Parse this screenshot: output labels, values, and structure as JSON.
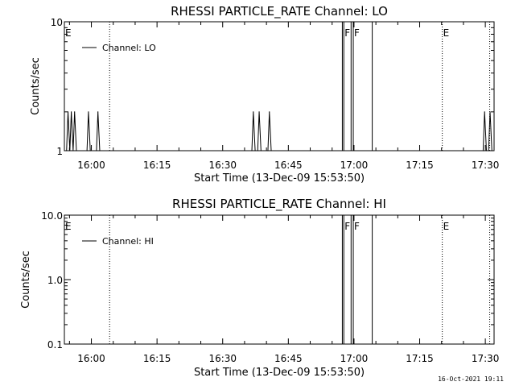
{
  "footer": {
    "timestamp": "16-Oct-2021 19:11"
  },
  "chart_data": [
    {
      "type": "line",
      "title": "RHESSI PARTICLE_RATE Channel: LO",
      "xlabel": "Start Time (13-Dec-09 15:53:50)",
      "ylabel": "Counts/sec",
      "yscale": "log",
      "xlim": [
        "15:53:50",
        "17:32:00"
      ],
      "ylim": [
        1,
        10
      ],
      "x_ticks": [
        "16:00",
        "16:15",
        "16:30",
        "16:45",
        "17:00",
        "17:15",
        "17:30"
      ],
      "y_ticks": [
        "1",
        "10"
      ],
      "legend": {
        "label": "Channel: LO",
        "placement": "top-left"
      },
      "series": [
        {
          "name": "Channel: LO",
          "points": [
            {
              "t": "15:53:50",
              "y": 1
            },
            {
              "t": "15:54:20",
              "y": 1
            },
            {
              "t": "15:54:40",
              "y": 2
            },
            {
              "t": "15:55:05",
              "y": 1
            },
            {
              "t": "15:55:25",
              "y": 2
            },
            {
              "t": "15:55:50",
              "y": 1
            },
            {
              "t": "15:56:10",
              "y": 2
            },
            {
              "t": "15:56:35",
              "y": 1
            },
            {
              "t": "15:59:00",
              "y": 1
            },
            {
              "t": "15:59:20",
              "y": 2
            },
            {
              "t": "15:59:45",
              "y": 1
            },
            {
              "t": "16:01:10",
              "y": 1
            },
            {
              "t": "16:01:30",
              "y": 2
            },
            {
              "t": "16:01:55",
              "y": 1
            },
            {
              "t": "16:36:40",
              "y": 1
            },
            {
              "t": "16:37:00",
              "y": 2
            },
            {
              "t": "16:37:25",
              "y": 1
            },
            {
              "t": "16:38:00",
              "y": 1
            },
            {
              "t": "16:38:20",
              "y": 2
            },
            {
              "t": "16:38:45",
              "y": 1
            },
            {
              "t": "16:40:20",
              "y": 1
            },
            {
              "t": "16:40:40",
              "y": 2
            },
            {
              "t": "16:41:05",
              "y": 1
            },
            {
              "t": "17:29:30",
              "y": 1
            },
            {
              "t": "17:29:50",
              "y": 2
            },
            {
              "t": "17:30:15",
              "y": 1
            },
            {
              "t": "17:30:45",
              "y": 1
            },
            {
              "t": "17:31:05",
              "y": 2
            },
            {
              "t": "17:31:30",
              "y": 1
            }
          ]
        }
      ],
      "markers": [
        {
          "t": "15:53:50",
          "label": "E",
          "style": "none"
        },
        {
          "t": "16:04:10",
          "label": "",
          "style": "dotted"
        },
        {
          "t": "16:57:20",
          "label": "",
          "style": "solid"
        },
        {
          "t": "16:57:40",
          "label": "F",
          "style": "solid"
        },
        {
          "t": "16:59:20",
          "label": "",
          "style": "solid"
        },
        {
          "t": "16:59:50",
          "label": "F",
          "style": "solid"
        },
        {
          "t": "17:04:10",
          "label": "",
          "style": "solid"
        },
        {
          "t": "17:20:10",
          "label": "E",
          "style": "dotted"
        },
        {
          "t": "17:31:00",
          "label": "",
          "style": "dotted"
        }
      ]
    },
    {
      "type": "line",
      "title": "RHESSI PARTICLE_RATE Channel: HI",
      "xlabel": "Start Time (13-Dec-09 15:53:50)",
      "ylabel": "Counts/sec",
      "yscale": "log",
      "xlim": [
        "15:53:50",
        "17:32:00"
      ],
      "ylim": [
        0.1,
        10
      ],
      "x_ticks": [
        "16:00",
        "16:15",
        "16:30",
        "16:45",
        "17:00",
        "17:15",
        "17:30"
      ],
      "y_ticks": [
        "0.1",
        "1.0",
        "10.0"
      ],
      "legend": {
        "label": "Channel: HI",
        "placement": "top-left"
      },
      "series": [
        {
          "name": "Channel: HI",
          "points": []
        }
      ],
      "markers": [
        {
          "t": "15:53:50",
          "label": "E",
          "style": "none"
        },
        {
          "t": "16:04:10",
          "label": "",
          "style": "dotted"
        },
        {
          "t": "16:57:20",
          "label": "",
          "style": "solid"
        },
        {
          "t": "16:57:40",
          "label": "F",
          "style": "solid"
        },
        {
          "t": "16:59:20",
          "label": "",
          "style": "solid"
        },
        {
          "t": "16:59:50",
          "label": "F",
          "style": "solid"
        },
        {
          "t": "17:04:10",
          "label": "",
          "style": "solid"
        },
        {
          "t": "17:20:10",
          "label": "E",
          "style": "dotted"
        },
        {
          "t": "17:31:00",
          "label": "",
          "style": "dotted"
        }
      ]
    }
  ]
}
